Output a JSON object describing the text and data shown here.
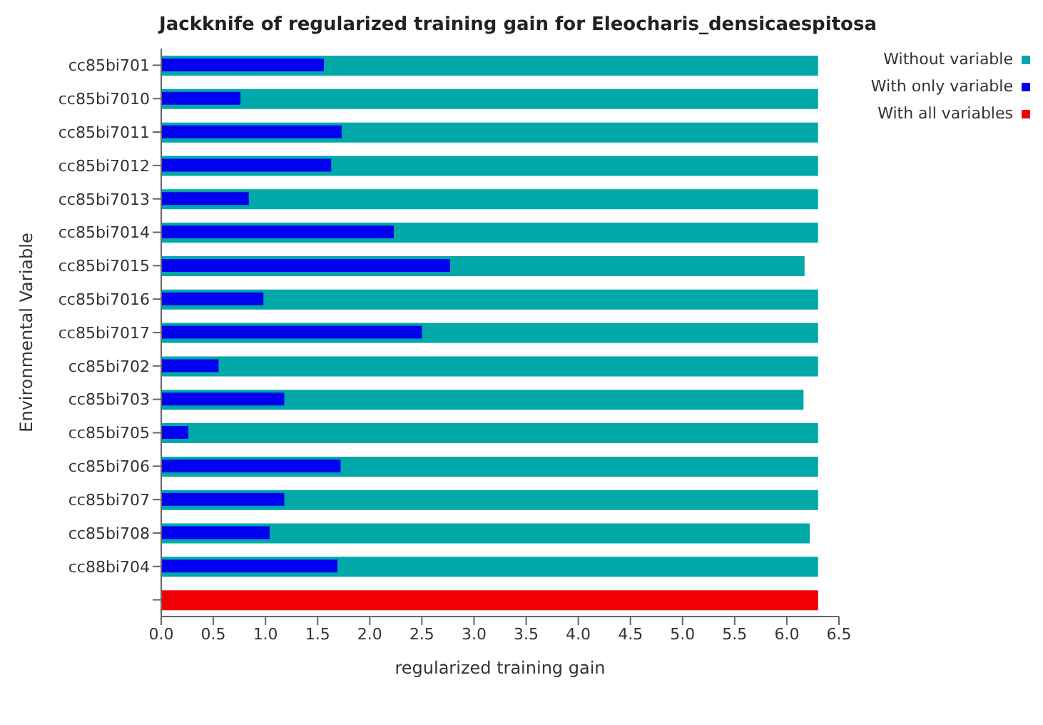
{
  "chart_data": {
    "type": "bar",
    "orientation": "horizontal",
    "title": "Jackknife of regularized training gain for Eleocharis_densicaespitosa",
    "xlabel": "regularized training gain",
    "ylabel": "Environmental Variable",
    "categories": [
      "cc85bi701",
      "cc85bi7010",
      "cc85bi7011",
      "cc85bi7012",
      "cc85bi7013",
      "cc85bi7014",
      "cc85bi7015",
      "cc85bi7016",
      "cc85bi7017",
      "cc85bi702",
      "cc85bi703",
      "cc85bi705",
      "cc85bi706",
      "cc85bi707",
      "cc85bi708",
      "cc88bi704",
      null
    ],
    "series": [
      {
        "name": "Without variable",
        "color": "#00a8a8",
        "values": [
          6.3,
          6.3,
          6.3,
          6.3,
          6.3,
          6.3,
          6.17,
          6.3,
          6.3,
          6.3,
          6.16,
          6.3,
          6.3,
          6.3,
          6.22,
          6.3,
          null
        ]
      },
      {
        "name": "With only variable",
        "color": "#0000f0",
        "values": [
          1.56,
          0.76,
          1.73,
          1.63,
          0.84,
          2.23,
          2.77,
          0.98,
          2.5,
          0.55,
          1.18,
          0.26,
          1.72,
          1.18,
          1.04,
          1.69,
          null
        ]
      },
      {
        "name": "With all variables",
        "color": "#f00000",
        "values": [
          null,
          null,
          null,
          null,
          null,
          null,
          null,
          null,
          null,
          null,
          null,
          null,
          null,
          null,
          null,
          null,
          6.3
        ]
      }
    ],
    "xlim": [
      0,
      6.5
    ],
    "xticks": [
      {
        "value": 0,
        "label": "0.0"
      },
      {
        "value": 0.5,
        "label": "0.5"
      },
      {
        "value": 1,
        "label": "1.0"
      },
      {
        "value": 1.5,
        "label": "1.5"
      },
      {
        "value": 2,
        "label": "2.0"
      },
      {
        "value": 2.5,
        "label": "2.5"
      },
      {
        "value": 3,
        "label": "3.0"
      },
      {
        "value": 3.5,
        "label": "3.5"
      },
      {
        "value": 4,
        "label": "4.0"
      },
      {
        "value": 4.5,
        "label": "4.5"
      },
      {
        "value": 5,
        "label": "5.0"
      },
      {
        "value": 5.5,
        "label": "5.5"
      },
      {
        "value": 6,
        "label": "6.0"
      },
      {
        "value": 6.5,
        "label": "6.5"
      }
    ],
    "legend": "top right"
  }
}
